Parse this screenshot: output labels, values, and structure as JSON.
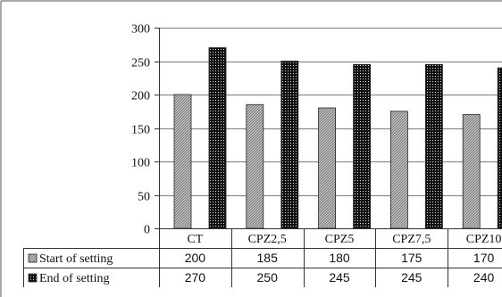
{
  "chart_data": {
    "type": "bar",
    "categories": [
      "CT",
      "CPZ2,5",
      "CPZ5",
      "CPZ7,5",
      "CPZ10"
    ],
    "series": [
      {
        "name": "Start of setting",
        "values": [
          200,
          185,
          180,
          175,
          170
        ],
        "pattern": "light-hatch",
        "color": "#9a9a9a"
      },
      {
        "name": "End of setting",
        "values": [
          270,
          250,
          245,
          245,
          240
        ],
        "pattern": "dark-dots",
        "color": "#111111"
      }
    ],
    "ylim": [
      0,
      300
    ],
    "yticks": [
      0,
      50,
      100,
      150,
      200,
      250,
      300
    ],
    "grid": true,
    "legend": "data-table-left",
    "title": "",
    "xlabel": "",
    "ylabel": ""
  }
}
